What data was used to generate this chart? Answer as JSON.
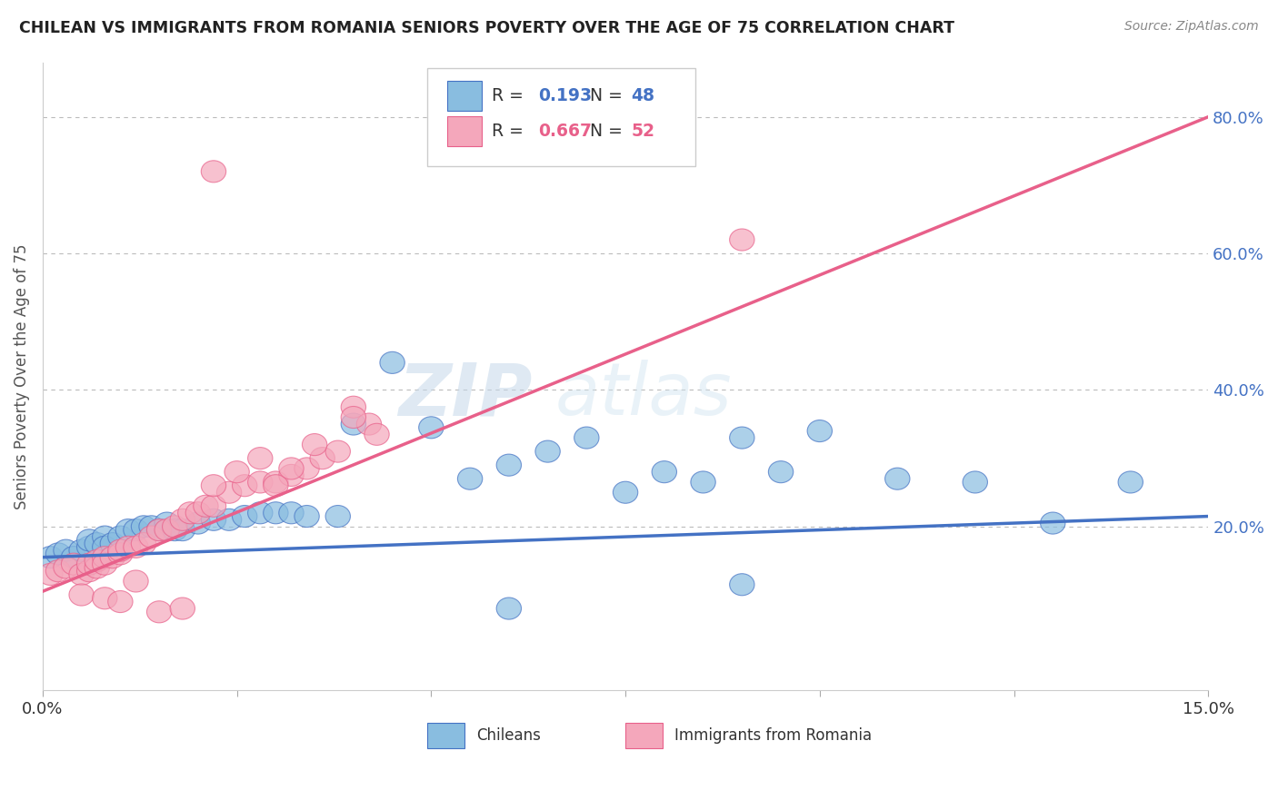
{
  "title": "CHILEAN VS IMMIGRANTS FROM ROMANIA SENIORS POVERTY OVER THE AGE OF 75 CORRELATION CHART",
  "source": "Source: ZipAtlas.com",
  "ylabel": "Seniors Poverty Over the Age of 75",
  "xlim": [
    0.0,
    0.15
  ],
  "ylim": [
    -0.02,
    0.88
  ],
  "chileans_R": 0.193,
  "chileans_N": 48,
  "romania_R": 0.667,
  "romania_N": 52,
  "blue_fill": "#89bde0",
  "pink_fill": "#f4a7bb",
  "blue_edge": "#4472c4",
  "pink_edge": "#e8608a",
  "blue_line": "#4472c4",
  "pink_line": "#e8608a",
  "legend_label_1": "Chileans",
  "legend_label_2": "Immigrants from Romania",
  "watermark_zip": "ZIP",
  "watermark_atlas": "atlas",
  "background_color": "#ffffff",
  "grid_color": "#bbbbbb",
  "right_tick_color": "#4472c4",
  "chileans_x": [
    0.001,
    0.002,
    0.003,
    0.004,
    0.005,
    0.006,
    0.006,
    0.007,
    0.008,
    0.008,
    0.009,
    0.01,
    0.011,
    0.012,
    0.013,
    0.014,
    0.015,
    0.016,
    0.017,
    0.018,
    0.02,
    0.022,
    0.024,
    0.026,
    0.028,
    0.03,
    0.032,
    0.034,
    0.038,
    0.04,
    0.045,
    0.05,
    0.055,
    0.06,
    0.065,
    0.07,
    0.075,
    0.08,
    0.085,
    0.09,
    0.095,
    0.1,
    0.11,
    0.12,
    0.13,
    0.14,
    0.06,
    0.09
  ],
  "chileans_y": [
    0.155,
    0.16,
    0.165,
    0.155,
    0.165,
    0.17,
    0.18,
    0.175,
    0.185,
    0.17,
    0.175,
    0.185,
    0.195,
    0.195,
    0.2,
    0.2,
    0.195,
    0.205,
    0.195,
    0.195,
    0.205,
    0.21,
    0.21,
    0.215,
    0.22,
    0.22,
    0.22,
    0.215,
    0.215,
    0.35,
    0.44,
    0.345,
    0.27,
    0.29,
    0.31,
    0.33,
    0.25,
    0.28,
    0.265,
    0.33,
    0.28,
    0.34,
    0.27,
    0.265,
    0.205,
    0.265,
    0.08,
    0.115
  ],
  "romania_x": [
    0.001,
    0.002,
    0.003,
    0.004,
    0.005,
    0.006,
    0.006,
    0.007,
    0.007,
    0.008,
    0.008,
    0.009,
    0.01,
    0.01,
    0.011,
    0.012,
    0.013,
    0.014,
    0.015,
    0.016,
    0.017,
    0.018,
    0.019,
    0.02,
    0.021,
    0.022,
    0.024,
    0.026,
    0.028,
    0.03,
    0.032,
    0.034,
    0.036,
    0.038,
    0.04,
    0.042,
    0.022,
    0.025,
    0.028,
    0.03,
    0.032,
    0.035,
    0.04,
    0.043,
    0.005,
    0.008,
    0.01,
    0.012,
    0.015,
    0.018,
    0.09,
    0.022
  ],
  "romania_y": [
    0.13,
    0.135,
    0.14,
    0.145,
    0.13,
    0.135,
    0.145,
    0.14,
    0.15,
    0.155,
    0.145,
    0.155,
    0.16,
    0.165,
    0.17,
    0.17,
    0.175,
    0.185,
    0.195,
    0.195,
    0.2,
    0.21,
    0.22,
    0.22,
    0.23,
    0.23,
    0.25,
    0.26,
    0.265,
    0.265,
    0.275,
    0.285,
    0.3,
    0.31,
    0.375,
    0.35,
    0.26,
    0.28,
    0.3,
    0.26,
    0.285,
    0.32,
    0.36,
    0.335,
    0.1,
    0.095,
    0.09,
    0.12,
    0.075,
    0.08,
    0.62,
    0.72
  ]
}
